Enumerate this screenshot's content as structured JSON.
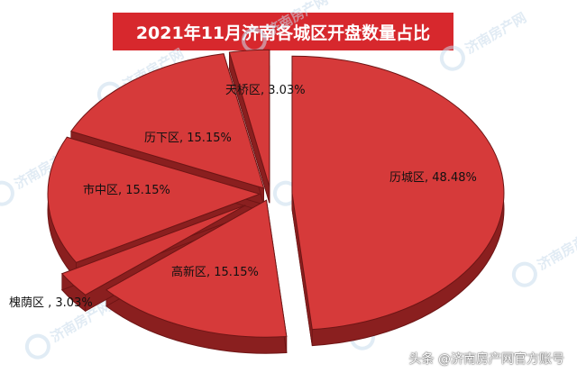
{
  "chart_data": {
    "type": "pie",
    "title": "2021年11月济南各城区开盘数量占比",
    "slices": [
      {
        "name": "历城区",
        "value": 48.48,
        "label": "历城区, 48.48%"
      },
      {
        "name": "高新区",
        "value": 15.15,
        "label": "高新区, 15.15%"
      },
      {
        "name": "槐荫区",
        "value": 3.03,
        "label": "槐荫区 , 3.03%"
      },
      {
        "name": "市中区",
        "value": 15.15,
        "label": "市中区, 15.15%"
      },
      {
        "name": "历下区",
        "value": 15.15,
        "label": "历下区, 15.15%"
      },
      {
        "name": "天桥区",
        "value": 3.03,
        "label": "天桥区, 3.03%"
      }
    ],
    "colors": {
      "top": "#d63a3a",
      "side": "#8a1f1f",
      "edge": "#6e1515"
    }
  },
  "watermark": {
    "text": "济南房产网"
  },
  "footer": {
    "text": "头条 @济南房产网官方账号"
  }
}
